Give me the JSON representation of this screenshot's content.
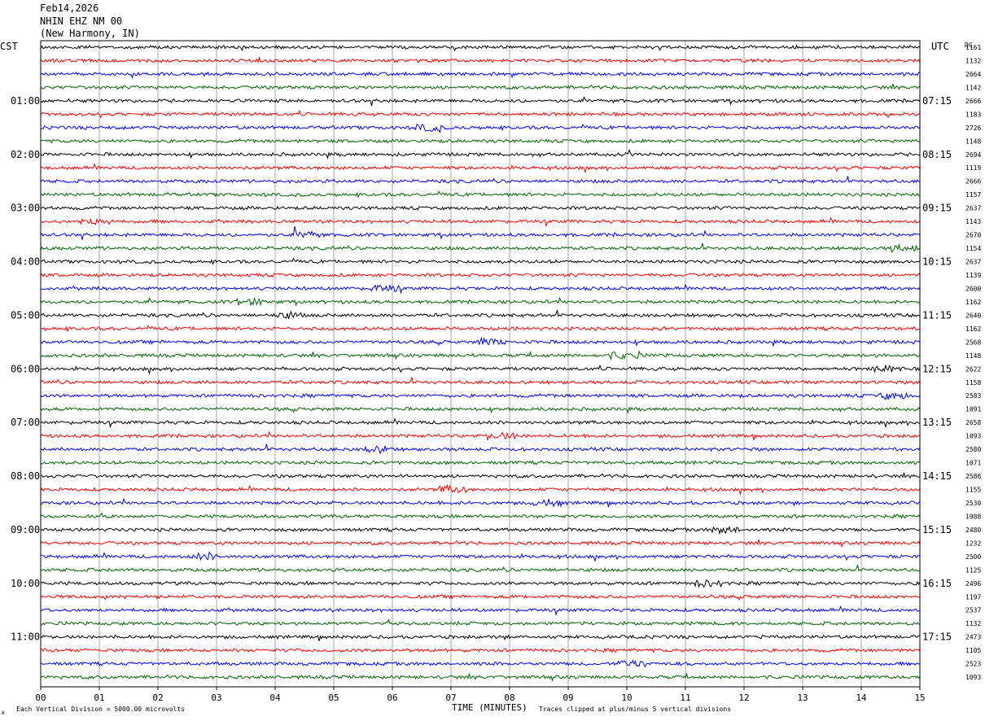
{
  "header": {
    "date": "Feb14,2026",
    "station": "NHIN EHZ NM 00",
    "location": "(New Harmony, IN)"
  },
  "left_tz": "CST",
  "right_tz": "UTC",
  "dc_label": "DC",
  "footer": {
    "division_note": "Each Vertical Division = 5000.00 microvolts",
    "xlabel": "TIME (MINUTES)",
    "clip_note": "Traces clipped at plus/minus 5 vertical divisions",
    "corner_mark": "A"
  },
  "colors": {
    "series": [
      "#000000",
      "#ff0000",
      "#0000ff",
      "#006400"
    ],
    "grid": "#808080"
  },
  "chart_data": {
    "type": "line",
    "title": "",
    "xlabel": "TIME (MINUTES)",
    "ylabel": "",
    "x_range": [
      0,
      15
    ],
    "x_ticks": [
      "00",
      "01",
      "02",
      "03",
      "04",
      "05",
      "06",
      "07",
      "08",
      "09",
      "10",
      "11",
      "12",
      "13",
      "14",
      "15"
    ],
    "rows_per_hour": 4,
    "row_count": 48,
    "grid": "vertical lines each minute",
    "left_hour_labels": [
      "01:00",
      "02:00",
      "03:00",
      "04:00",
      "05:00",
      "06:00",
      "07:00",
      "08:00",
      "09:00",
      "10:00",
      "11:00"
    ],
    "right_hour_labels": [
      "07:15",
      "08:15",
      "09:15",
      "10:15",
      "11:15",
      "12:15",
      "13:15",
      "14:15",
      "15:15",
      "16:15",
      "17:15"
    ],
    "dc_offsets": [
      "1161",
      "1132",
      "2664",
      "1142",
      "2666",
      "1183",
      "2726",
      "1148",
      "2694",
      "1119",
      "2666",
      "1157",
      "2637",
      "1143",
      "2670",
      "1154",
      "2637",
      "1139",
      "2600",
      "1162",
      "2640",
      "1162",
      "2568",
      "1148",
      "2622",
      "1158",
      "2583",
      "1091",
      "2658",
      "1093",
      "2580",
      "1071",
      "2586",
      "1155",
      "2530",
      "1088",
      "2480",
      "1232",
      "2500",
      "1125",
      "2496",
      "1197",
      "2537",
      "1132",
      "2473",
      "1105",
      "2523",
      "1093"
    ],
    "series_colors": [
      "black",
      "red",
      "blue",
      "green"
    ]
  }
}
